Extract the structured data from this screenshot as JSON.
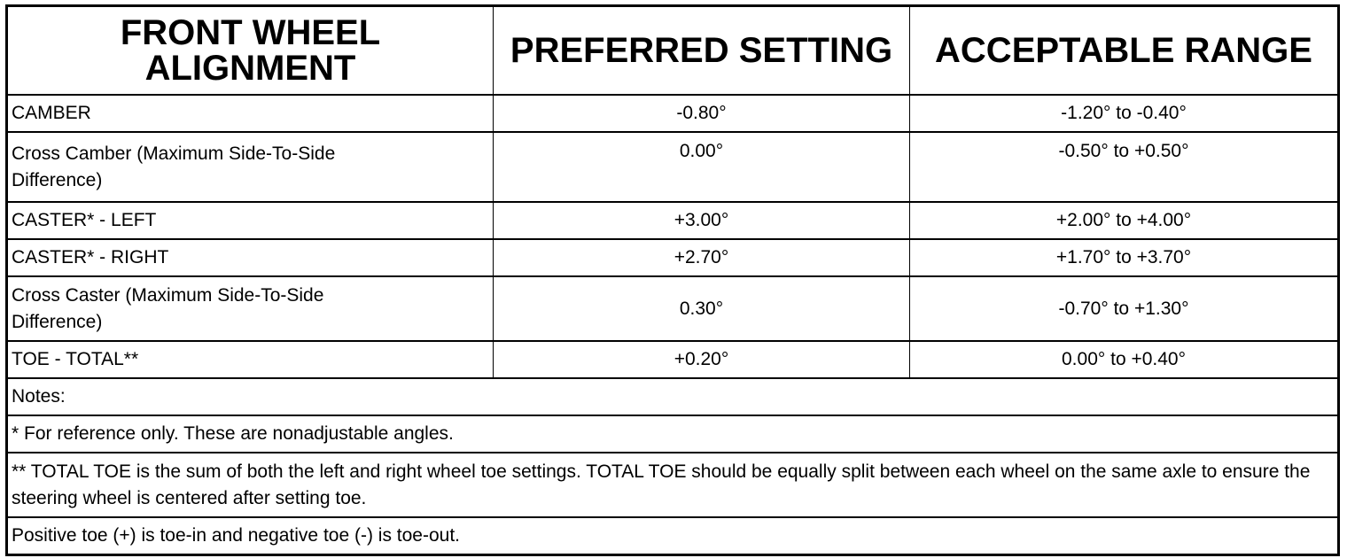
{
  "header": {
    "col1": "FRONT WHEEL ALIGNMENT",
    "col2": "PREFERRED SETTING",
    "col3": "ACCEPTABLE RANGE"
  },
  "rows": [
    {
      "label": "CAMBER",
      "preferred": "-0.80°",
      "range": "-1.20° to -0.40°"
    },
    {
      "label": "Cross Camber (Maximum Side-To-Side Difference)",
      "preferred": "0.00°",
      "range": "-0.50° to +0.50°"
    },
    {
      "label": "CASTER* - LEFT",
      "preferred": "+3.00°",
      "range": "+2.00° to +4.00°"
    },
    {
      "label": "CASTER* - RIGHT",
      "preferred": "+2.70°",
      "range": "+1.70° to +3.70°"
    },
    {
      "label": "Cross Caster (Maximum Side-To-Side Difference)",
      "preferred": "0.30°",
      "range": "-0.70° to +1.30°"
    },
    {
      "label": "TOE - TOTAL**",
      "preferred": "+0.20°",
      "range": "0.00° to +0.40°"
    }
  ],
  "notes": [
    "Notes:",
    "* For reference only. These are nonadjustable angles.",
    "** TOTAL TOE is the sum of both the left and right wheel toe settings. TOTAL TOE should be equally split between each wheel on the same axle to ensure the steering wheel is centered after setting toe.",
    "Positive toe (+) is toe-in and negative toe (-) is toe-out."
  ]
}
